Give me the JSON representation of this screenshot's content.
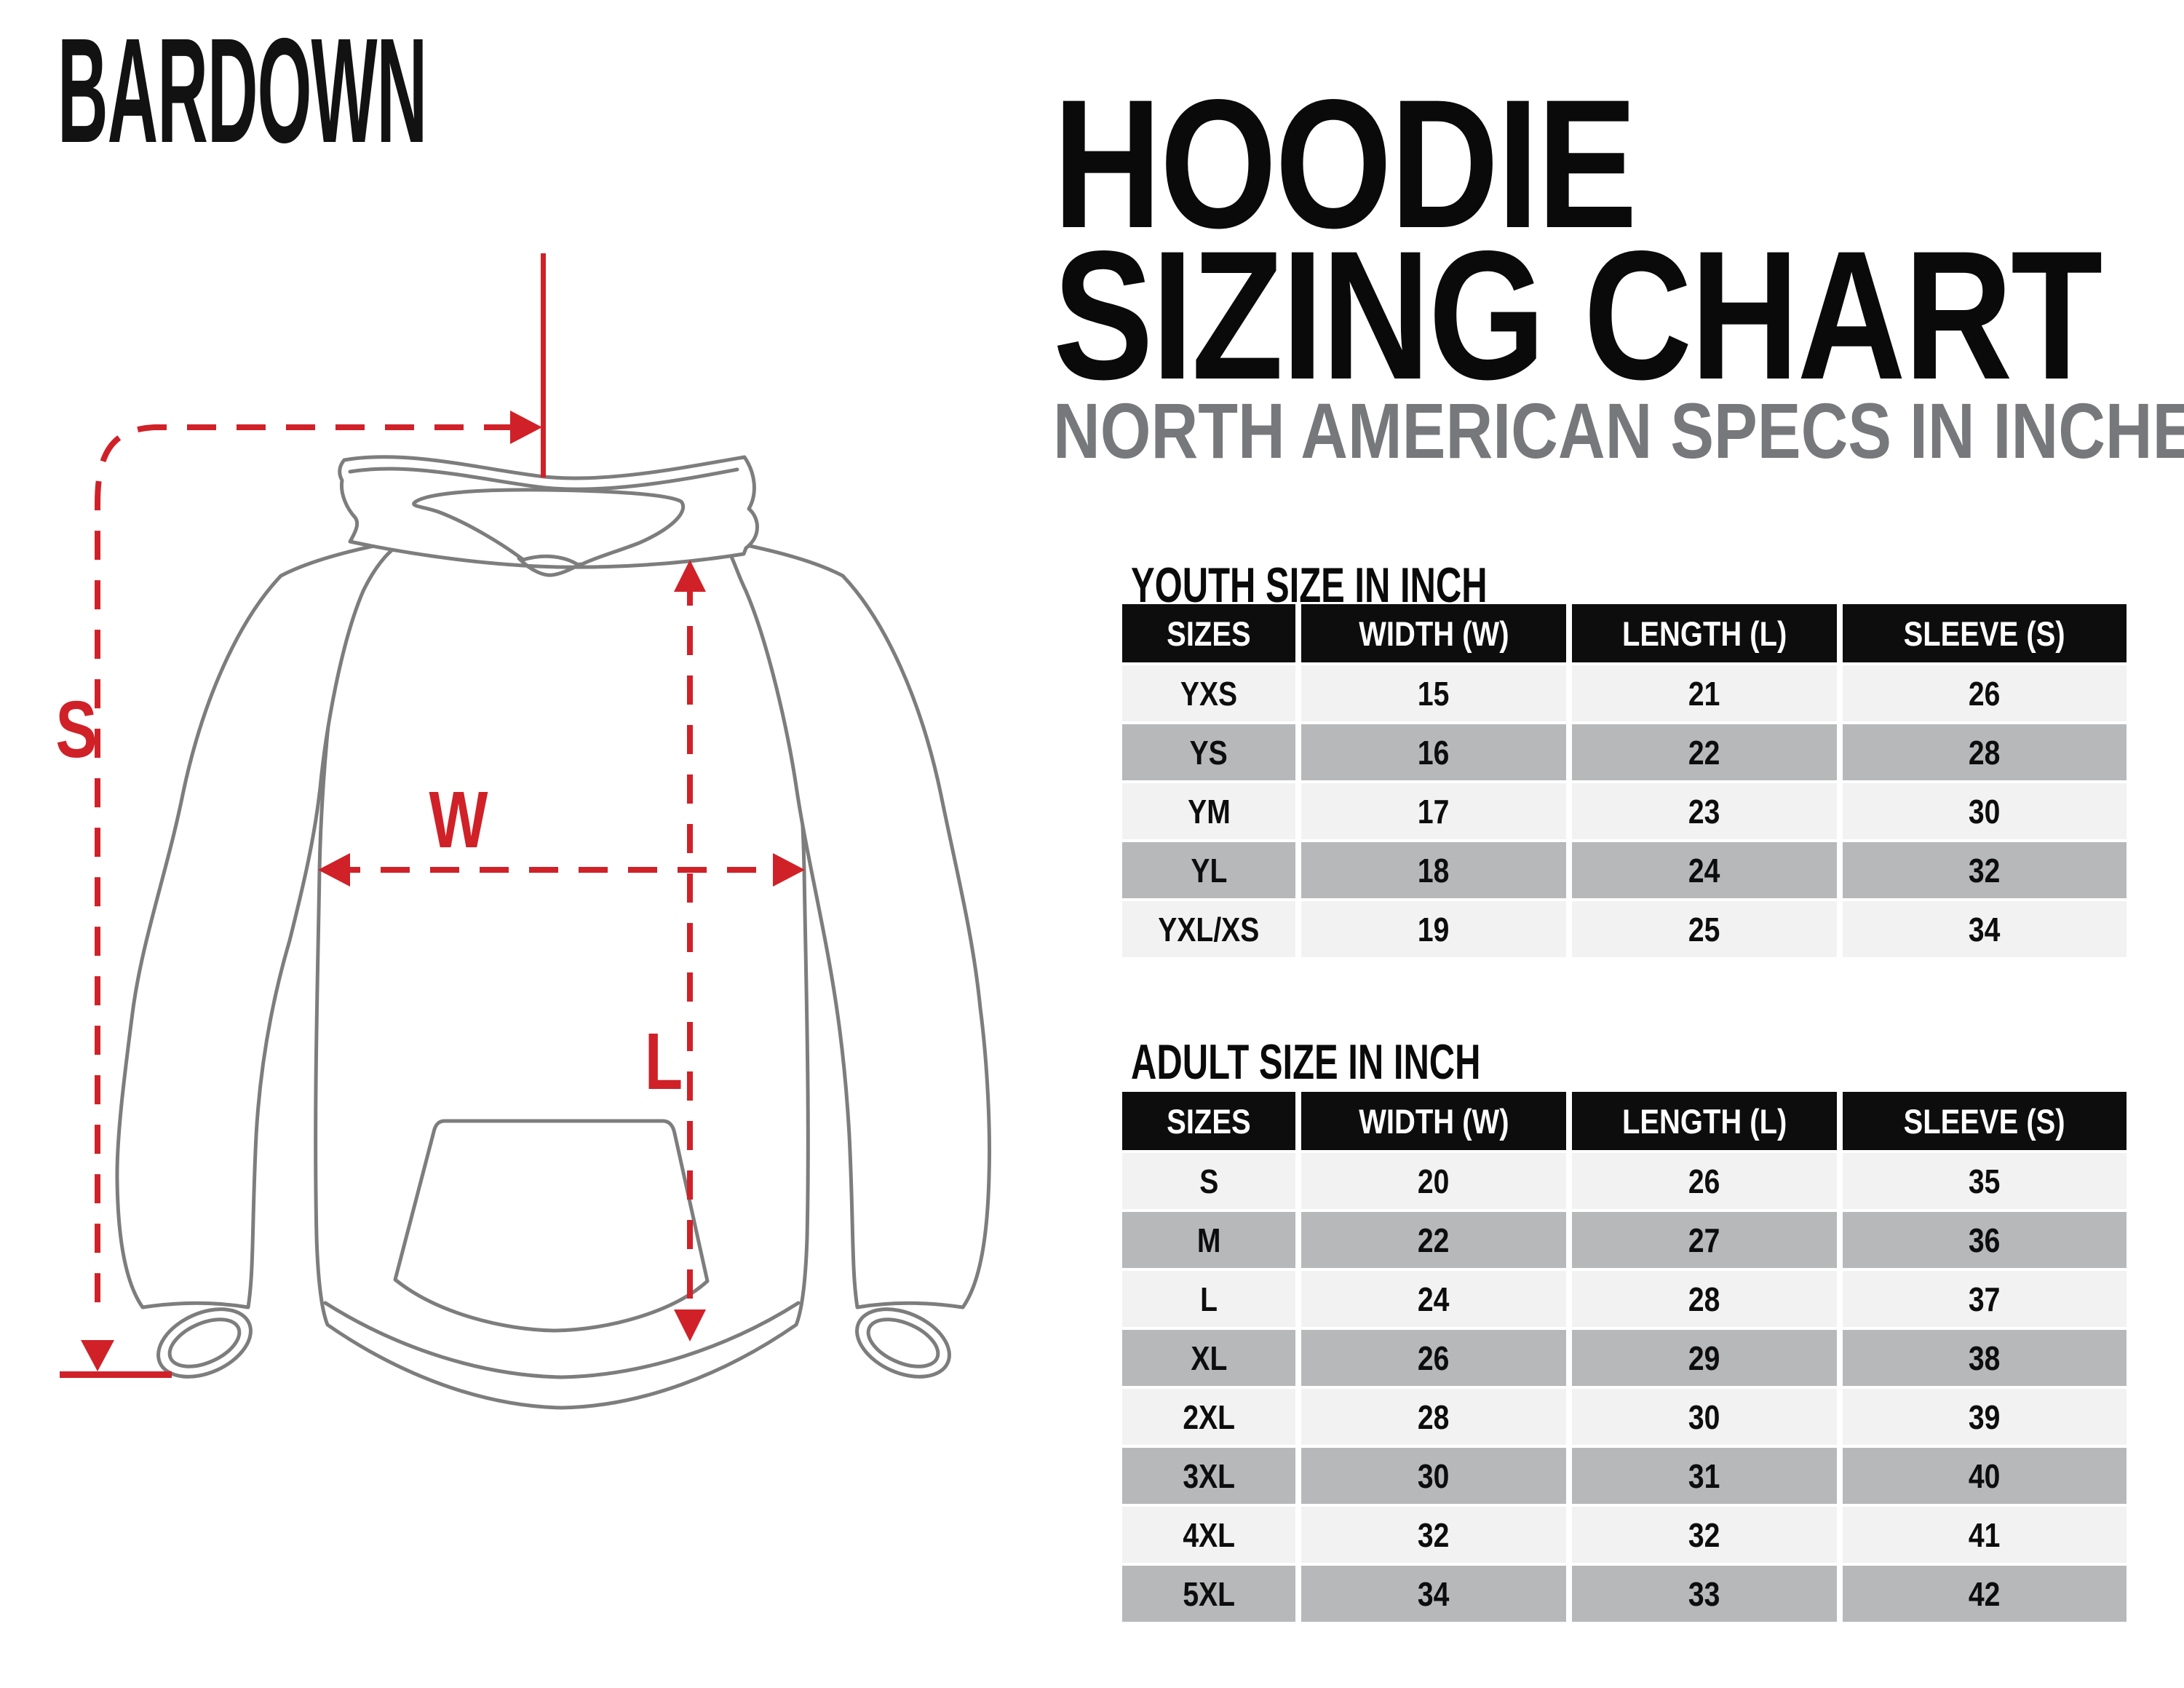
{
  "logo": {
    "text": "BARDOWN"
  },
  "header": {
    "title_line1": "HOODIE",
    "title_line2": "SIZING CHART",
    "subtitle": "NORTH AMERICAN SPECS IN INCHES"
  },
  "diagram": {
    "labels": {
      "sleeve": "S",
      "width": "W",
      "length": "L"
    }
  },
  "youth_table": {
    "heading": "YOUTH SIZE IN INCH",
    "columns": [
      "SIZES",
      "WIDTH (W)",
      "LENGTH (L)",
      "SLEEVE (S)"
    ],
    "rows": [
      [
        "YXS",
        "15",
        "21",
        "26"
      ],
      [
        "YS",
        "16",
        "22",
        "28"
      ],
      [
        "YM",
        "17",
        "23",
        "30"
      ],
      [
        "YL",
        "18",
        "24",
        "32"
      ],
      [
        "YXL/XS",
        "19",
        "25",
        "34"
      ]
    ]
  },
  "adult_table": {
    "heading": "ADULT SIZE IN INCH",
    "columns": [
      "SIZES",
      "WIDTH (W)",
      "LENGTH (L)",
      "SLEEVE (S)"
    ],
    "rows": [
      [
        "S",
        "20",
        "26",
        "35"
      ],
      [
        "M",
        "22",
        "27",
        "36"
      ],
      [
        "L",
        "24",
        "28",
        "37"
      ],
      [
        "XL",
        "26",
        "29",
        "38"
      ],
      [
        "2XL",
        "28",
        "30",
        "39"
      ],
      [
        "3XL",
        "30",
        "31",
        "40"
      ],
      [
        "4XL",
        "32",
        "32",
        "41"
      ],
      [
        "5XL",
        "34",
        "33",
        "42"
      ]
    ]
  },
  "colors": {
    "accent_red": "#d02128",
    "table_header_bg": "#0d0d0e",
    "row_light": "#f2f2f3",
    "row_dark": "#b7b8ba",
    "outline_gray": "#7d7d7d",
    "subtitle_gray": "#77787b"
  }
}
